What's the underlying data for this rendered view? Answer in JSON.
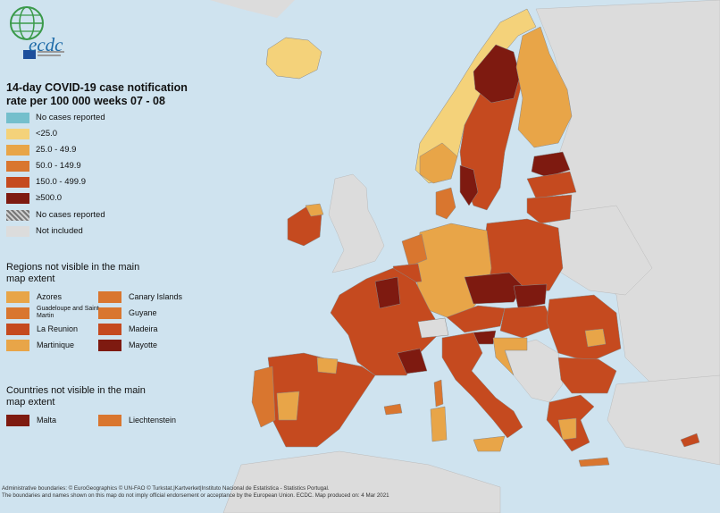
{
  "title": "14-day COVID-19 case notification rate per 100 000 weeks  07 - 08",
  "logo": {
    "text": "ecdc"
  },
  "colors": {
    "sea": "#cfe3ef",
    "not_included": "#dcdcdc",
    "no_cases": "#74bfcc",
    "lt25": "#f4d27a",
    "c25_49": "#e8a548",
    "c50_149": "#d9762f",
    "c150_499": "#c54a1f",
    "ge500": "#7e1a10"
  },
  "legend": [
    {
      "label": "No cases reported",
      "color": "#74bfcc"
    },
    {
      "label": "<25.0",
      "color": "#f4d27a"
    },
    {
      "label": "25.0 - 49.9",
      "color": "#e8a548"
    },
    {
      "label": "50.0 - 149.9",
      "color": "#d9762f"
    },
    {
      "label": "150.0 - 499.9",
      "color": "#c54a1f"
    },
    {
      "label": "≥500.0",
      "color": "#7e1a10"
    },
    {
      "label": "No cases reported",
      "color": "hatch"
    },
    {
      "label": "Not included",
      "color": "#dcdcdc"
    }
  ],
  "regions_title": "Regions not visible in the main map extent",
  "regions": [
    {
      "label": "Azores",
      "color": "#e8a548"
    },
    {
      "label": "Canary Islands",
      "color": "#d9762f"
    },
    {
      "label": "Guadeloupe and Saint Martin",
      "color": "#d9762f"
    },
    {
      "label": "Guyane",
      "color": "#d9762f"
    },
    {
      "label": "La Reunion",
      "color": "#c54a1f"
    },
    {
      "label": "Madeira",
      "color": "#c54a1f"
    },
    {
      "label": "Martinique",
      "color": "#e8a548"
    },
    {
      "label": "Mayotte",
      "color": "#7e1a10"
    }
  ],
  "countries_title": "Countries not visible in the main map extent",
  "countries": [
    {
      "label": "Malta",
      "color": "#7e1a10"
    },
    {
      "label": "Liechtenstein",
      "color": "#d9762f"
    }
  ],
  "footer": [
    "Administrative boundaries: © EuroGeographics © UN-FAO © Turkstat.|Kartverket|Instituto Nacional de Estatística - Statistics Portugal.",
    "The boundaries and names shown on this map do not imply official endorsement or acceptance by the European Union. ECDC. Map produced on: 4 Mar 2021"
  ]
}
